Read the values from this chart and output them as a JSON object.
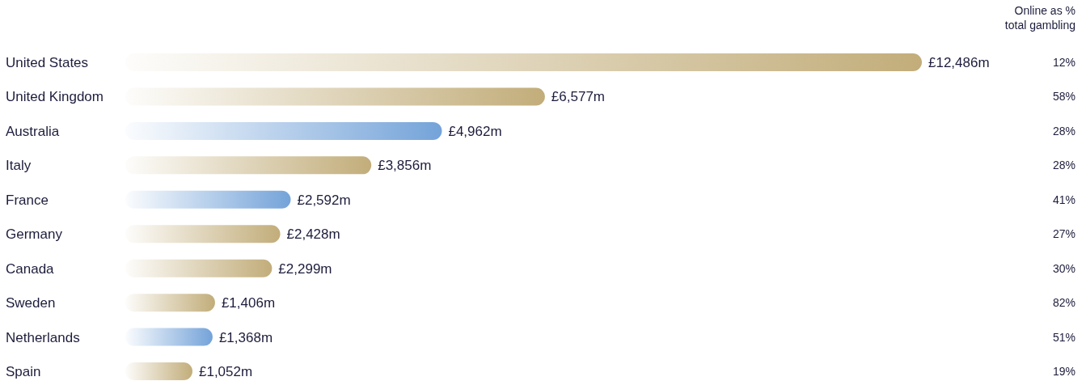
{
  "chart_data": [
    {
      "type": "bar",
      "orientation": "horizontal",
      "categories": [
        "United States",
        "United Kingdom",
        "Australia",
        "Italy",
        "France",
        "Germany",
        "Canada",
        "Sweden",
        "Netherlands",
        "Spain"
      ],
      "values": [
        12486,
        6577,
        4962,
        3856,
        2592,
        2428,
        2299,
        1406,
        1368,
        1052
      ],
      "colors": [
        "#c2ad7a",
        "#c2ad7a",
        "#74a3d9",
        "#c2ad7a",
        "#74a3d9",
        "#c2ad7a",
        "#c2ad7a",
        "#c2ad7a",
        "#74a3d9",
        "#c2ad7a"
      ],
      "value_labels": [
        "£12,486m",
        "£6,577m",
        "£4,962m",
        "£3,856m",
        "£2,592m",
        "£2,428m",
        "£2,299m",
        "£1,406m",
        "£1,368m",
        "£1,052m"
      ]
    },
    {
      "type": "other",
      "title": "Online as % total gambling",
      "categories": [
        null,
        null,
        null,
        null,
        null,
        null,
        null,
        null,
        null,
        null
      ],
      "values": [
        12,
        58,
        28,
        28,
        41,
        27,
        30,
        82,
        51,
        19
      ],
      "value_labels": [
        "12%",
        "58%",
        "28%",
        "28%",
        "41%",
        "27%",
        "30%",
        "82%",
        "51%",
        "19%"
      ]
    }
  ]
}
